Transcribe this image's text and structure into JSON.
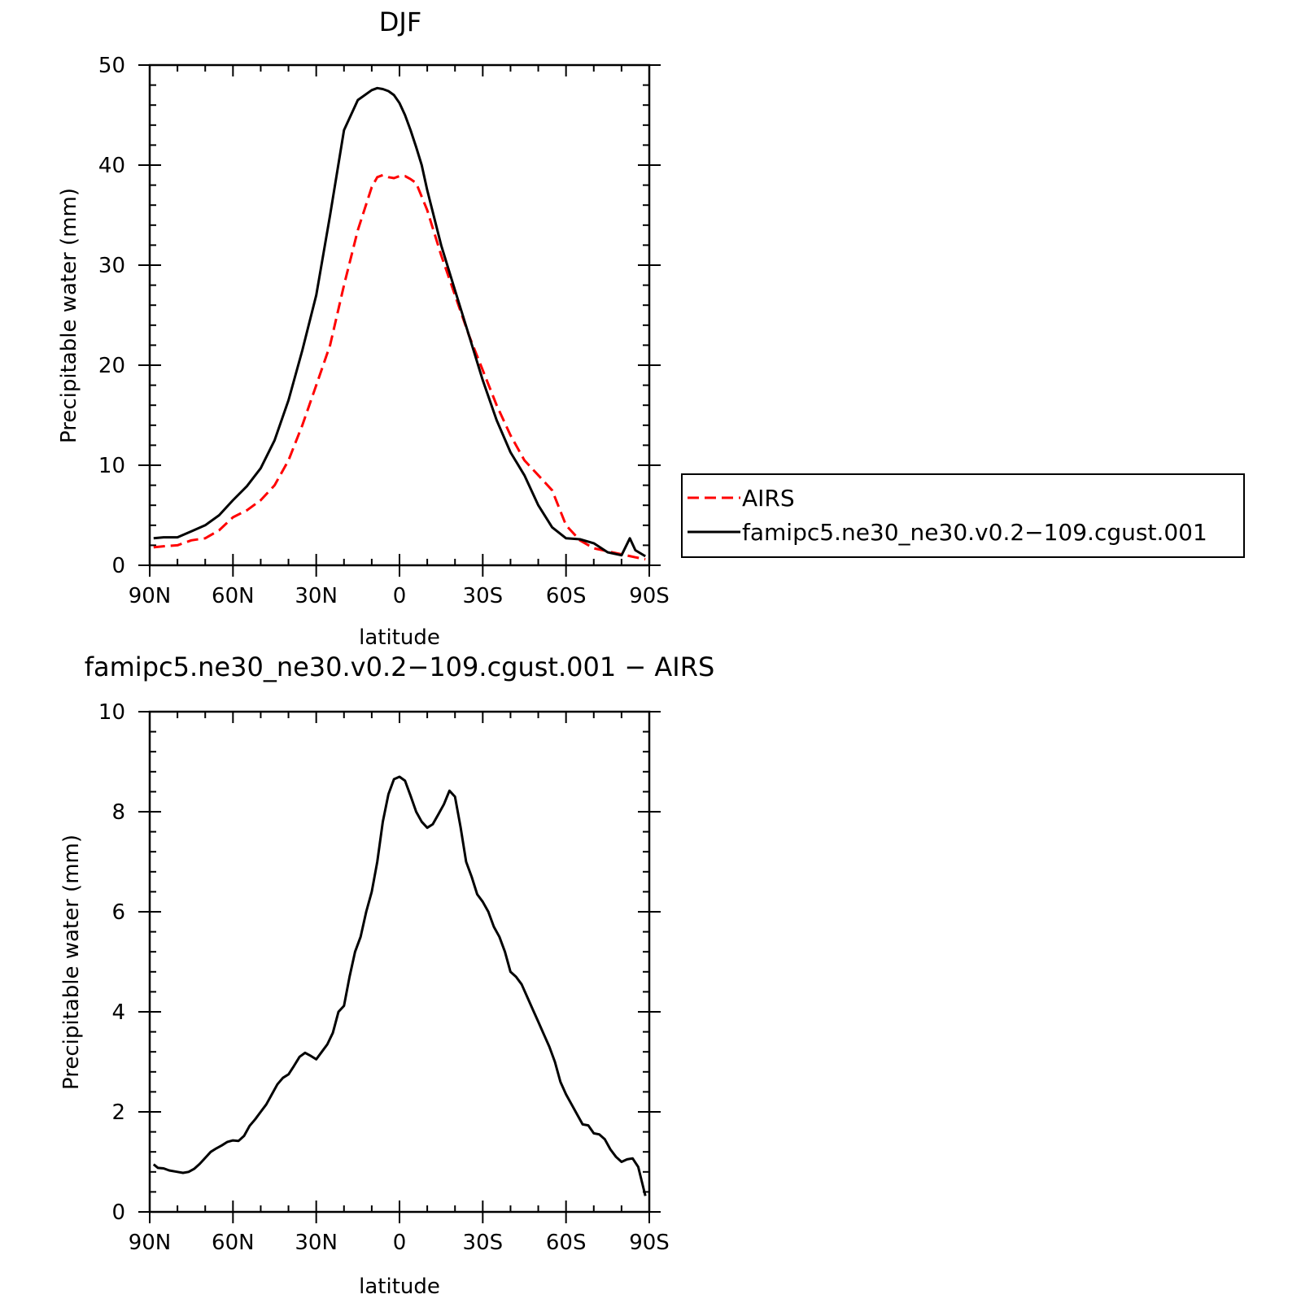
{
  "chart_data": [
    {
      "type": "line",
      "title": "DJF",
      "xlabel": "latitude",
      "ylabel": "Precipitable water (mm)",
      "xlim": [
        90,
        -90
      ],
      "ylim": [
        0,
        50
      ],
      "xticks": [
        90,
        60,
        30,
        0,
        -30,
        -60,
        -90
      ],
      "xtick_labels": [
        "90N",
        "60N",
        "30N",
        "0",
        "30S",
        "60S",
        "90S"
      ],
      "yticks": [
        0,
        10,
        20,
        30,
        40,
        50
      ],
      "ytick_labels": [
        "0",
        "10",
        "20",
        "30",
        "40",
        "50"
      ],
      "grid": false,
      "legend": "right-outside",
      "series": [
        {
          "name": "AIRS",
          "color": "#ff0000",
          "dash": true,
          "x": [
            88.6,
            85,
            80,
            75,
            70,
            65,
            60,
            55,
            50,
            45,
            40,
            35,
            30,
            25,
            20,
            15,
            10,
            8,
            6,
            4,
            2,
            0,
            -2,
            -4,
            -6,
            -10,
            -15,
            -20,
            -25,
            -30,
            -35,
            -40,
            -45,
            -50,
            -55,
            -60,
            -65,
            -70,
            -75,
            -80,
            -85,
            -88.6
          ],
          "y": [
            1.8,
            1.9,
            2.0,
            2.5,
            2.7,
            3.5,
            4.8,
            5.5,
            6.5,
            8.0,
            10.5,
            14.0,
            18.0,
            22.0,
            28.0,
            33.5,
            37.8,
            38.8,
            39.0,
            38.8,
            38.7,
            38.9,
            38.9,
            38.6,
            38.2,
            35.5,
            31.0,
            27.0,
            23.0,
            19.5,
            16.0,
            13.0,
            10.5,
            9.0,
            7.5,
            4.0,
            2.5,
            1.7,
            1.4,
            1.1,
            0.8,
            0.6
          ]
        },
        {
          "name": "famipc5.ne30_ne30.v0.2−109.cgust.001",
          "color": "#000000",
          "dash": false,
          "x": [
            88.6,
            85,
            80,
            75,
            70,
            65,
            60,
            55,
            50,
            45,
            40,
            35,
            30,
            25,
            20,
            15,
            10,
            8,
            6,
            4,
            2,
            0,
            -2,
            -4,
            -6,
            -8,
            -10,
            -15,
            -20,
            -25,
            -30,
            -35,
            -40,
            -45,
            -50,
            -55,
            -60,
            -65,
            -70,
            -75,
            -80,
            -83,
            -85,
            -88.6
          ],
          "y": [
            2.7,
            2.8,
            2.8,
            3.4,
            4.0,
            5.0,
            6.5,
            7.9,
            9.7,
            12.5,
            16.5,
            21.5,
            27.0,
            35.0,
            43.5,
            46.5,
            47.5,
            47.7,
            47.6,
            47.4,
            47.0,
            46.2,
            45.0,
            43.5,
            41.8,
            40.0,
            37.5,
            32.0,
            27.5,
            23.0,
            18.5,
            14.5,
            11.3,
            9.0,
            6.0,
            3.8,
            2.7,
            2.6,
            2.2,
            1.3,
            1.0,
            2.7,
            1.5,
            0.9
          ]
        }
      ]
    },
    {
      "type": "line",
      "title": "famipc5.ne30_ne30.v0.2−109.cgust.001  −  AIRS",
      "xlabel": "latitude",
      "ylabel": "Precipitable water (mm)",
      "xlim": [
        90,
        -90
      ],
      "ylim": [
        0,
        10
      ],
      "xticks": [
        90,
        60,
        30,
        0,
        -30,
        -60,
        -90
      ],
      "xtick_labels": [
        "90N",
        "60N",
        "30N",
        "0",
        "30S",
        "60S",
        "90S"
      ],
      "yticks": [
        0,
        2,
        4,
        6,
        8,
        10
      ],
      "ytick_labels": [
        "0",
        "2",
        "4",
        "6",
        "8",
        "10"
      ],
      "grid": false,
      "series": [
        {
          "color": "#000000",
          "dash": false,
          "x": [
            88.6,
            87,
            85,
            83,
            80,
            78,
            76,
            74,
            72,
            70,
            68,
            66,
            64,
            62,
            60,
            58,
            56,
            54,
            52,
            50,
            48,
            46,
            44,
            42,
            40,
            38,
            36,
            34,
            32,
            30,
            28,
            26,
            24,
            22,
            20,
            18,
            16,
            14,
            12,
            10,
            8,
            6,
            4,
            2,
            0,
            -2,
            -4,
            -6,
            -8,
            -10,
            -12,
            -14,
            -16,
            -18,
            -20,
            -22,
            -24,
            -26,
            -28,
            -30,
            -32,
            -34,
            -36,
            -38,
            -40,
            -42,
            -44,
            -46,
            -48,
            -50,
            -52,
            -54,
            -56,
            -58,
            -60,
            -62,
            -64,
            -66,
            -68,
            -70,
            -72,
            -74,
            -76,
            -78,
            -80,
            -82,
            -84,
            -86,
            -88.6
          ],
          "y": [
            0.95,
            0.88,
            0.87,
            0.83,
            0.8,
            0.78,
            0.8,
            0.86,
            0.96,
            1.08,
            1.2,
            1.27,
            1.33,
            1.4,
            1.43,
            1.42,
            1.52,
            1.72,
            1.85,
            2.0,
            2.15,
            2.35,
            2.55,
            2.68,
            2.75,
            2.92,
            3.1,
            3.18,
            3.12,
            3.05,
            3.2,
            3.35,
            3.58,
            4.0,
            4.12,
            4.7,
            5.2,
            5.5,
            6.0,
            6.4,
            7.0,
            7.8,
            8.35,
            8.65,
            8.7,
            8.62,
            8.32,
            8.0,
            7.8,
            7.68,
            7.75,
            7.95,
            8.15,
            8.42,
            8.3,
            7.7,
            7.0,
            6.7,
            6.35,
            6.2,
            6.0,
            5.7,
            5.5,
            5.2,
            4.8,
            4.7,
            4.55,
            4.3,
            4.05,
            3.8,
            3.55,
            3.3,
            3.0,
            2.6,
            2.35,
            2.15,
            1.95,
            1.75,
            1.73,
            1.57,
            1.55,
            1.45,
            1.25,
            1.1,
            1.0,
            1.05,
            1.07,
            0.9,
            0.32
          ]
        }
      ]
    }
  ],
  "legend": {
    "entries": [
      "AIRS",
      "famipc5.ne30_ne30.v0.2−109.cgust.001"
    ]
  }
}
